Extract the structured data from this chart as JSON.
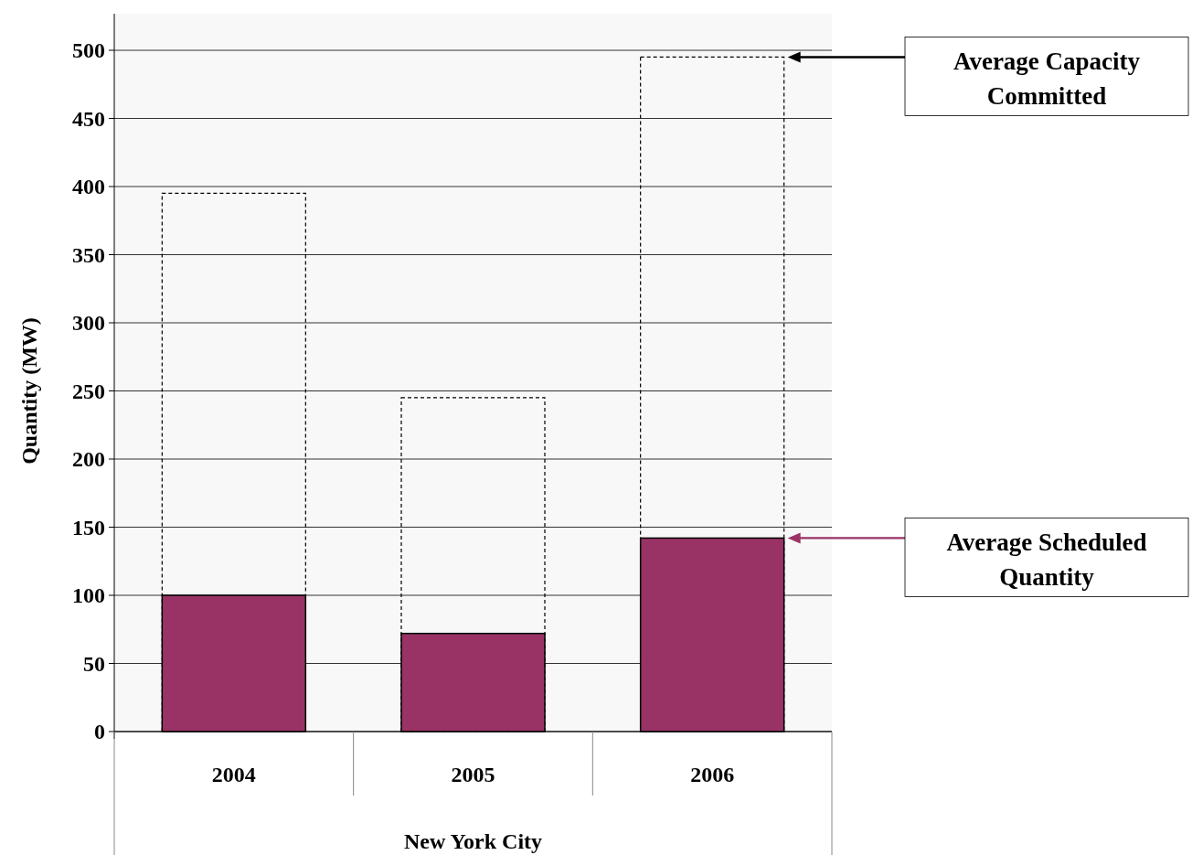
{
  "chart_data": {
    "type": "bar",
    "xlabel": "New York City",
    "ylabel": "Quantity (MW)",
    "categories": [
      "2004",
      "2005",
      "2006"
    ],
    "series": [
      {
        "name": "Average Capacity Committed",
        "color": "#000000",
        "line_style": "dashed",
        "values": [
          395,
          245,
          495
        ]
      },
      {
        "name": "Average Scheduled Quantity",
        "color": "#993366",
        "values": [
          100,
          72,
          142
        ]
      }
    ],
    "ylim": [
      0,
      500
    ],
    "yticks": [
      0,
      50,
      100,
      150,
      200,
      250,
      300,
      350,
      400,
      450,
      500
    ],
    "grid": "y",
    "legend": "right"
  }
}
